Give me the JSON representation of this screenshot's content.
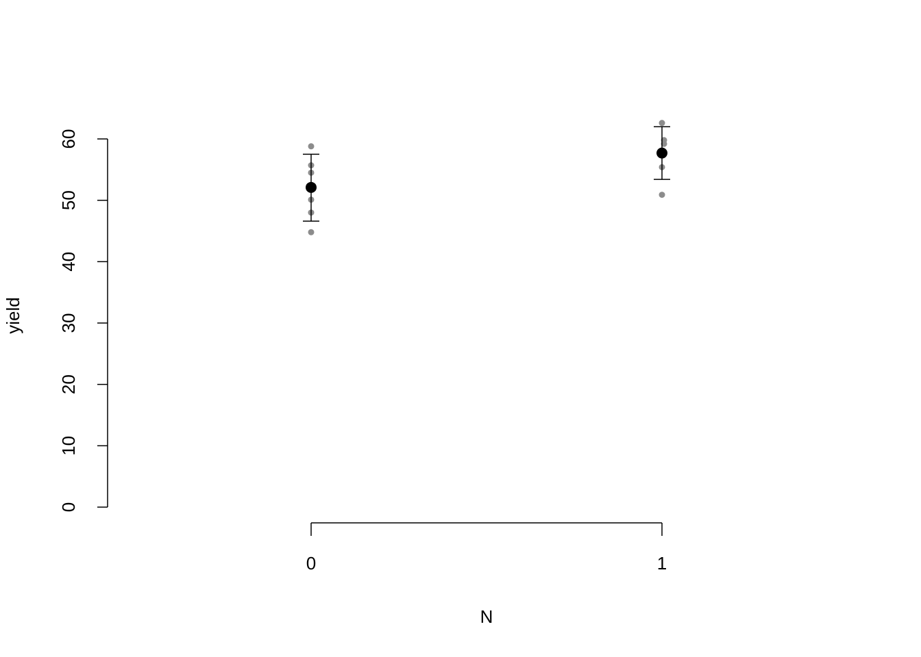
{
  "chart_data": {
    "type": "scatter",
    "xlabel": "N",
    "ylabel": "yield",
    "ylim": [
      0,
      60
    ],
    "yticks": [
      "0",
      "10",
      "20",
      "30",
      "40",
      "50",
      "60"
    ],
    "categories": [
      "0",
      "1"
    ],
    "groups": [
      {
        "category": "0",
        "mean": 52.1,
        "ci": [
          46.6,
          57.5
        ],
        "points": [
          58.8,
          55.7,
          54.5,
          52.0,
          50.1,
          48.0,
          44.8
        ]
      },
      {
        "category": "1",
        "mean": 57.7,
        "ci": [
          53.4,
          62.0
        ],
        "points": [
          62.6,
          59.8,
          59.2,
          57.7,
          55.4,
          50.9
        ]
      }
    ],
    "colors": {
      "points": "#8c8c8c",
      "mean": "#000000",
      "axis": "#000000"
    }
  }
}
